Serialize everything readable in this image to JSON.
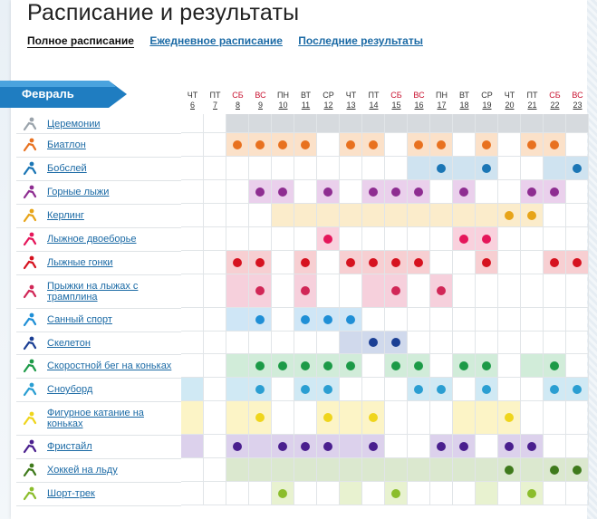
{
  "header": {
    "title": "Расписание и результаты",
    "tabs": [
      {
        "label": "Полное расписание",
        "active": true
      },
      {
        "label": "Ежедневное расписание",
        "active": false
      },
      {
        "label": "Последние результаты",
        "active": false
      }
    ]
  },
  "month_label": "Февраль",
  "days": [
    {
      "wd": "ЧТ",
      "d": "6",
      "weekend": false
    },
    {
      "wd": "ПТ",
      "d": "7",
      "weekend": false
    },
    {
      "wd": "СБ",
      "d": "8",
      "weekend": true
    },
    {
      "wd": "ВС",
      "d": "9",
      "weekend": true
    },
    {
      "wd": "ПН",
      "d": "10",
      "weekend": false
    },
    {
      "wd": "ВТ",
      "d": "11",
      "weekend": false
    },
    {
      "wd": "СР",
      "d": "12",
      "weekend": false
    },
    {
      "wd": "ЧТ",
      "d": "13",
      "weekend": false
    },
    {
      "wd": "ПТ",
      "d": "14",
      "weekend": false
    },
    {
      "wd": "СБ",
      "d": "15",
      "weekend": true
    },
    {
      "wd": "ВС",
      "d": "16",
      "weekend": true
    },
    {
      "wd": "ПН",
      "d": "17",
      "weekend": false
    },
    {
      "wd": "ВТ",
      "d": "18",
      "weekend": false
    },
    {
      "wd": "СР",
      "d": "19",
      "weekend": false
    },
    {
      "wd": "ЧТ",
      "d": "20",
      "weekend": false
    },
    {
      "wd": "ПТ",
      "d": "21",
      "weekend": false
    },
    {
      "wd": "СБ",
      "d": "22",
      "weekend": true
    },
    {
      "wd": "ВС",
      "d": "23",
      "weekend": true
    }
  ],
  "sports": [
    {
      "name": "Церемонии",
      "icon": "ceremony-icon",
      "color": "#9aa3ab",
      "bg": "#d6dade",
      "events": [
        0,
        0,
        0,
        0,
        0,
        0,
        0,
        0,
        0,
        0,
        0,
        0,
        0,
        0,
        0,
        0,
        0,
        0
      ],
      "medals": []
    },
    {
      "name": "Биатлон",
      "icon": "biathlon-icon",
      "color": "#e8711f",
      "bg": "#fbe1c9",
      "events": [
        0,
        0,
        1,
        1,
        1,
        1,
        0,
        1,
        1,
        0,
        1,
        1,
        0,
        1,
        0,
        1,
        1,
        0
      ],
      "medals": [
        2,
        3,
        4,
        5,
        7,
        8,
        10,
        11,
        13,
        15,
        16
      ]
    },
    {
      "name": "Бобслей",
      "icon": "bobsleigh-icon",
      "color": "#1b76b5",
      "bg": "#cfe3f0",
      "events": [
        0,
        0,
        0,
        0,
        0,
        0,
        0,
        0,
        0,
        0,
        1,
        1,
        1,
        1,
        0,
        0,
        1,
        1
      ],
      "medals": [
        11,
        13,
        17
      ]
    },
    {
      "name": "Горные лыжи",
      "icon": "alpine-icon",
      "color": "#8e2d91",
      "bg": "#ead0ec",
      "events": [
        0,
        0,
        0,
        1,
        1,
        0,
        1,
        0,
        1,
        1,
        1,
        0,
        1,
        0,
        0,
        1,
        1,
        0
      ],
      "medals": [
        3,
        4,
        6,
        8,
        9,
        10,
        12,
        15,
        16
      ]
    },
    {
      "name": "Керлинг",
      "icon": "curling-icon",
      "color": "#e7a418",
      "bg": "#fbeccb",
      "events": [
        0,
        0,
        0,
        0,
        1,
        1,
        1,
        1,
        1,
        1,
        1,
        1,
        1,
        1,
        1,
        1,
        0,
        0
      ],
      "medals": [
        14,
        15
      ]
    },
    {
      "name": "Лыжное двоеборье",
      "icon": "nordic-combined-icon",
      "color": "#e5165a",
      "bg": "#f9d1dd",
      "events": [
        0,
        0,
        0,
        0,
        0,
        0,
        1,
        0,
        0,
        0,
        0,
        0,
        1,
        1,
        0,
        0,
        0,
        0
      ],
      "medals": [
        6,
        12,
        13
      ]
    },
    {
      "name": "Лыжные гонки",
      "icon": "cross-country-icon",
      "color": "#d6121f",
      "bg": "#f7cfd2",
      "events": [
        0,
        0,
        1,
        1,
        0,
        1,
        0,
        1,
        1,
        1,
        1,
        0,
        0,
        1,
        0,
        0,
        1,
        1
      ],
      "medals": [
        2,
        3,
        5,
        7,
        8,
        9,
        10,
        13,
        16,
        17
      ]
    },
    {
      "name": "Прыжки на лыжах с трамплина",
      "icon": "ski-jumping-icon",
      "color": "#d12757",
      "bg": "#f6d0dc",
      "events": [
        0,
        0,
        1,
        1,
        0,
        1,
        0,
        0,
        1,
        1,
        0,
        1,
        0,
        0,
        0,
        0,
        0,
        0
      ],
      "medals": [
        3,
        5,
        9,
        11
      ]
    },
    {
      "name": "Санный спорт",
      "icon": "luge-icon",
      "color": "#1f8fd6",
      "bg": "#cfe6f6",
      "events": [
        0,
        0,
        1,
        1,
        0,
        1,
        1,
        1,
        0,
        0,
        0,
        0,
        0,
        0,
        0,
        0,
        0,
        0
      ],
      "medals": [
        3,
        5,
        6,
        7
      ]
    },
    {
      "name": "Скелетон",
      "icon": "skeleton-icon",
      "color": "#1b3f94",
      "bg": "#d0d9ec",
      "events": [
        0,
        0,
        0,
        0,
        0,
        0,
        0,
        1,
        1,
        1,
        0,
        0,
        0,
        0,
        0,
        0,
        0,
        0
      ],
      "medals": [
        8,
        9
      ]
    },
    {
      "name": "Скоростной бег на коньках",
      "icon": "speed-skating-icon",
      "color": "#1c9a47",
      "bg": "#d1ecd9",
      "events": [
        0,
        0,
        1,
        1,
        1,
        1,
        1,
        1,
        0,
        1,
        1,
        0,
        1,
        1,
        0,
        1,
        1,
        0
      ],
      "medals": [
        3,
        4,
        5,
        6,
        7,
        9,
        10,
        12,
        13,
        16
      ]
    },
    {
      "name": "Сноуборд",
      "icon": "snowboard-icon",
      "color": "#2a9ed2",
      "bg": "#d0e9f4",
      "events": [
        1,
        0,
        1,
        1,
        0,
        1,
        1,
        0,
        0,
        0,
        1,
        1,
        0,
        1,
        0,
        0,
        1,
        1
      ],
      "medals": [
        3,
        5,
        6,
        10,
        11,
        13,
        16,
        17
      ]
    },
    {
      "name": "Фигурное катание на коньках",
      "icon": "figure-skating-icon",
      "color": "#efd51c",
      "bg": "#fcf4c6",
      "events": [
        1,
        0,
        1,
        1,
        0,
        0,
        1,
        1,
        1,
        0,
        0,
        0,
        1,
        1,
        1,
        0,
        0,
        0
      ],
      "medals": [
        3,
        6,
        8,
        14
      ]
    },
    {
      "name": "Фристайл",
      "icon": "freestyle-icon",
      "color": "#4a1f8e",
      "bg": "#dcd1ec",
      "events": [
        1,
        0,
        1,
        1,
        1,
        1,
        1,
        1,
        1,
        0,
        0,
        1,
        1,
        0,
        1,
        1,
        0,
        0
      ],
      "medals": [
        2,
        4,
        5,
        6,
        8,
        11,
        12,
        14,
        15
      ]
    },
    {
      "name": "Хоккей на льду",
      "icon": "ice-hockey-icon",
      "color": "#3f7a1c",
      "bg": "#dbe8cf",
      "events": [
        0,
        0,
        1,
        1,
        1,
        1,
        1,
        1,
        1,
        1,
        1,
        1,
        1,
        1,
        1,
        1,
        1,
        1
      ],
      "medals": [
        14,
        16,
        17
      ]
    },
    {
      "name": "Шорт-трек",
      "icon": "short-track-icon",
      "color": "#8bbd2c",
      "bg": "#e8f2d0",
      "events": [
        0,
        0,
        0,
        0,
        1,
        0,
        0,
        1,
        0,
        1,
        0,
        0,
        0,
        1,
        0,
        1,
        0,
        0
      ],
      "medals": [
        4,
        9,
        15
      ]
    }
  ]
}
